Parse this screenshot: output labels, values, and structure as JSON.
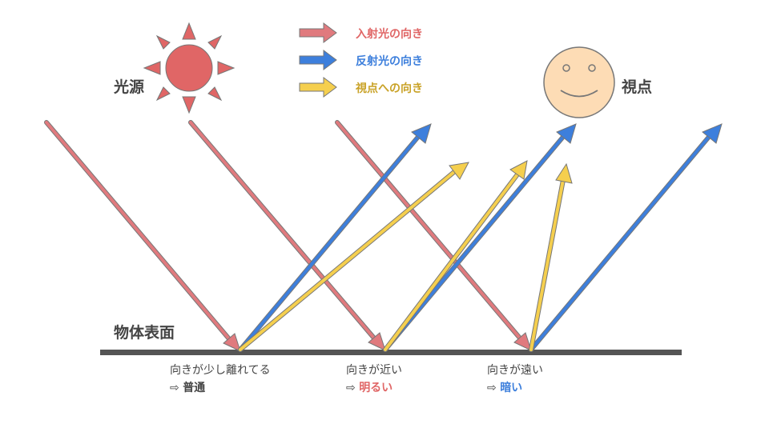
{
  "colors": {
    "incident": "#e07a7e",
    "reflected": "#3d7fdc",
    "view": "#f5cf4e",
    "sun": "#e06666",
    "face": "#fddcb5",
    "surface": "#555555",
    "text": "#444444"
  },
  "legend": [
    {
      "label": "入射光の向き",
      "color": "#e06666"
    },
    {
      "label": "反射光の向き",
      "color": "#3d7fdc"
    },
    {
      "label": "視点への向き",
      "color": "#c9a227"
    }
  ],
  "labels": {
    "light_source": "光源",
    "viewpoint": "視点",
    "surface": "物体表面"
  },
  "cases": [
    {
      "condition": "向きが少し離れてる",
      "arrow": "⇨",
      "result": "普通",
      "result_color": "#444444"
    },
    {
      "condition": "向きが近い",
      "arrow": "⇨",
      "result": "明るい",
      "result_color": "#e06666"
    },
    {
      "condition": "向きが遠い",
      "arrow": "⇨",
      "result": "暗い",
      "result_color": "#3d7fdc"
    }
  ],
  "icons": {
    "sun": "sun-icon",
    "face": "smiley-face-icon"
  }
}
